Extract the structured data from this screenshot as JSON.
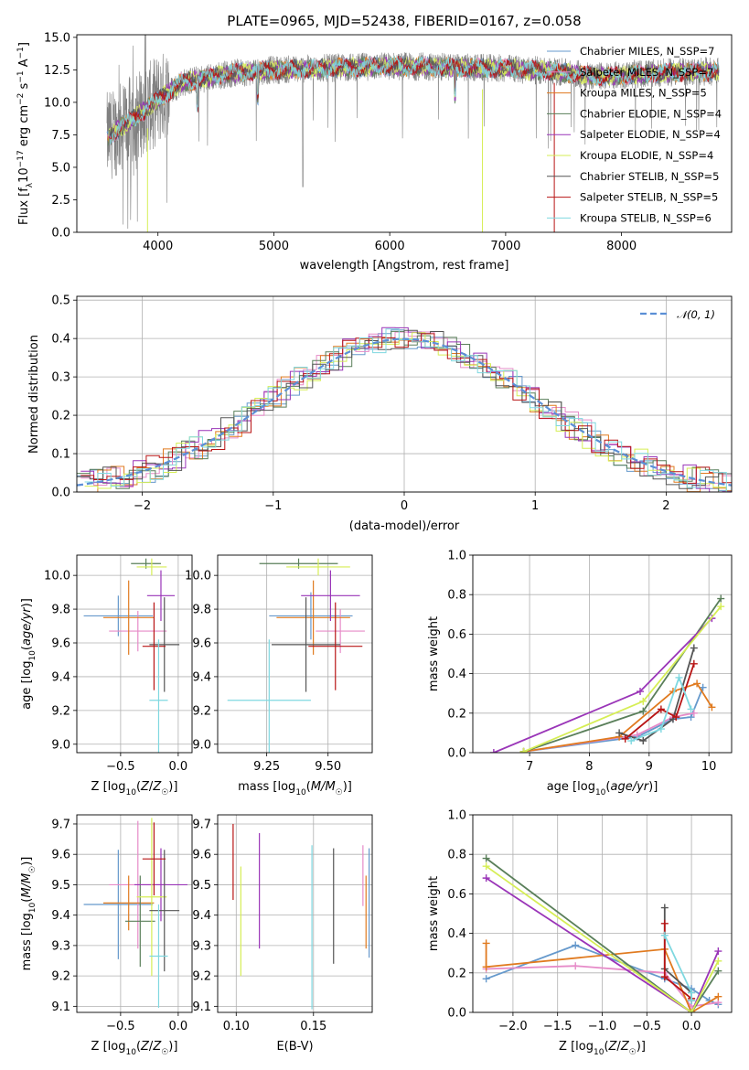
{
  "chart_data": [
    {
      "type": "line",
      "title": "PLATE=0965, MJD=52438, FIBERID=0167, z=0.058",
      "xlabel": "wavelength [Angstrom, rest frame]",
      "ylabel": "Flux [f_λ 10^-17 erg cm^-2 s^-1 A^-1]",
      "xlim": [
        3300,
        8950
      ],
      "ylim": [
        0,
        15.2
      ],
      "xticks": [
        4000,
        5000,
        6000,
        7000,
        8000
      ],
      "yticks": [
        0.0,
        2.5,
        5.0,
        7.5,
        10.0,
        12.5,
        15.0
      ],
      "xtick_labels": [
        "4000",
        "5000",
        "6000",
        "7000",
        "8000"
      ],
      "ytick_labels": [
        "0.0",
        "2.5",
        "5.0",
        "7.5",
        "10.0",
        "12.5",
        "15.0"
      ],
      "grid": false,
      "legend_position": "right",
      "observed": {
        "name": "",
        "color": "#808080",
        "x_range": [
          3560,
          8840
        ],
        "continuum": [
          [
            3560,
            7.3
          ],
          [
            3900,
            9.5
          ],
          [
            4200,
            11.5
          ],
          [
            4600,
            12.2
          ],
          [
            5000,
            12.5
          ],
          [
            6000,
            12.8
          ],
          [
            7000,
            12.6
          ],
          [
            7400,
            12.4
          ],
          [
            7800,
            12.0
          ],
          [
            8400,
            12.3
          ],
          [
            8840,
            12.4
          ]
        ]
      },
      "series": [
        {
          "name": "Chabrier MILES, N_SSP=7",
          "color": "#6699cc"
        },
        {
          "name": "Salpeter MILES, N_SSP=7",
          "color": "#e68bc8"
        },
        {
          "name": "Kroupa MILES, N_SSP=5",
          "color": "#e07a1f"
        },
        {
          "name": "Chabrier ELODIE, N_SSP=4",
          "color": "#5a7f5a"
        },
        {
          "name": "Salpeter ELODIE, N_SSP=4",
          "color": "#9a35b8"
        },
        {
          "name": "Kroupa ELODIE, N_SSP=4",
          "color": "#d6ee55"
        },
        {
          "name": "Chabrier STELIB, N_SSP=5",
          "color": "#555555"
        },
        {
          "name": "Salpeter STELIB, N_SSP=5",
          "color": "#b81414"
        },
        {
          "name": "Kroupa STELIB, N_SSP=6",
          "color": "#7fd8e0"
        }
      ]
    },
    {
      "type": "line",
      "xlabel": "(data-model)/error",
      "ylabel": "Normed distribution",
      "xlim": [
        -2.5,
        2.5
      ],
      "ylim": [
        0,
        0.51
      ],
      "xticks": [
        -2,
        -1,
        0,
        1,
        2
      ],
      "yticks": [
        0.0,
        0.1,
        0.2,
        0.3,
        0.4,
        0.5
      ],
      "xtick_labels": [
        "−2",
        "−1",
        "0",
        "1",
        "2"
      ],
      "ytick_labels": [
        "0.0",
        "0.1",
        "0.2",
        "0.3",
        "0.4",
        "0.5"
      ],
      "grid": true,
      "legend_position": "top-right",
      "reference_curve": {
        "name": "𝒩(0, 1)",
        "color": "#5b8fd6",
        "mean": 0,
        "sigma": 1
      },
      "histogram_bin_width": 0.1,
      "histogram_series_count": 9
    },
    {
      "type": "scatter",
      "xlabel": "Z [log10(Z/Z☉)]",
      "ylabel": "age [log10(age/yr)]",
      "xlim": [
        -0.88,
        0.12
      ],
      "ylim": [
        8.95,
        10.12
      ],
      "xticks": [
        -0.5,
        0.0
      ],
      "yticks": [
        9.0,
        9.2,
        9.4,
        9.6,
        9.8,
        10.0
      ],
      "xtick_labels": [
        "−0.5",
        "0.0"
      ],
      "ytick_labels": [
        "9.0",
        "9.2",
        "9.4",
        "9.6",
        "9.8",
        "10.0"
      ],
      "grid": true,
      "points": [
        {
          "color": "#6699cc",
          "x": -0.52,
          "xerr": 0.3,
          "y": 9.76,
          "yerr": 0.12
        },
        {
          "color": "#e68bc8",
          "x": -0.35,
          "xerr": 0.25,
          "y": 9.67,
          "yerr": 0.12
        },
        {
          "color": "#e07a1f",
          "x": -0.43,
          "xerr": 0.22,
          "y": 9.75,
          "yerr": 0.22
        },
        {
          "color": "#5a7f5a",
          "x": -0.28,
          "xerr": 0.13,
          "y": 10.07,
          "yerr": 0.03
        },
        {
          "color": "#9a35b8",
          "x": -0.15,
          "xerr": 0.12,
          "y": 9.88,
          "yerr": 0.15
        },
        {
          "color": "#d6ee55",
          "x": -0.23,
          "xerr": 0.13,
          "y": 10.05,
          "yerr": 0.05
        },
        {
          "color": "#555555",
          "x": -0.12,
          "xerr": 0.13,
          "y": 9.59,
          "yerr": 0.28
        },
        {
          "color": "#b81414",
          "x": -0.21,
          "xerr": 0.1,
          "y": 9.58,
          "yerr": 0.26
        },
        {
          "color": "#7fd8e0",
          "x": -0.17,
          "xerr": 0.08,
          "y": 9.26,
          "yerr": 0.36
        }
      ]
    },
    {
      "type": "scatter",
      "xlabel": "mass [log10(M/M☉)]",
      "ylabel": "",
      "xlim": [
        9.05,
        9.68
      ],
      "ylim": [
        8.95,
        10.12
      ],
      "xticks": [
        9.25,
        9.5
      ],
      "yticks": [
        9.0,
        9.2,
        9.4,
        9.6,
        9.8,
        10.0
      ],
      "xtick_labels": [
        "9.25",
        "9.50"
      ],
      "ytick_labels": [
        "9.0",
        "9.2",
        "9.4",
        "9.6",
        "9.8",
        "10.0"
      ],
      "grid": true,
      "points": [
        {
          "color": "#6699cc",
          "x": 9.43,
          "xerr": 0.17,
          "y": 9.76,
          "yerr": 0.14
        },
        {
          "color": "#e68bc8",
          "x": 9.55,
          "xerr": 0.1,
          "y": 9.67,
          "yerr": 0.13
        },
        {
          "color": "#e07a1f",
          "x": 9.44,
          "xerr": 0.15,
          "y": 9.75,
          "yerr": 0.22
        },
        {
          "color": "#5a7f5a",
          "x": 9.38,
          "xerr": 0.16,
          "y": 10.07,
          "yerr": 0.03
        },
        {
          "color": "#9a35b8",
          "x": 9.51,
          "xerr": 0.12,
          "y": 9.88,
          "yerr": 0.15
        },
        {
          "color": "#d6ee55",
          "x": 9.46,
          "xerr": 0.13,
          "y": 10.05,
          "yerr": 0.05
        },
        {
          "color": "#555555",
          "x": 9.41,
          "xerr": 0.14,
          "y": 9.59,
          "yerr": 0.28
        },
        {
          "color": "#b81414",
          "x": 9.53,
          "xerr": 0.11,
          "y": 9.58,
          "yerr": 0.26
        },
        {
          "color": "#7fd8e0",
          "x": 9.26,
          "xerr": 0.17,
          "y": 9.26,
          "yerr": 0.36
        }
      ]
    },
    {
      "type": "line",
      "xlabel": "age [log10(age/yr)]",
      "ylabel": "mass weight",
      "xlim": [
        6.05,
        10.38
      ],
      "ylim": [
        0,
        1.0
      ],
      "xticks": [
        7,
        8,
        9,
        10
      ],
      "yticks": [
        0.0,
        0.2,
        0.4,
        0.6,
        0.8,
        1.0
      ],
      "xtick_labels": [
        "7",
        "8",
        "9",
        "10"
      ],
      "ytick_labels": [
        "0.0",
        "0.2",
        "0.4",
        "0.6",
        "0.8",
        "1.0"
      ],
      "grid": true,
      "series": [
        {
          "color": "#6699cc",
          "x": [
            6.9,
            8.8,
            9.4,
            9.7,
            9.9
          ],
          "y": [
            0.005,
            0.08,
            0.17,
            0.18,
            0.33
          ]
        },
        {
          "color": "#e68bc8",
          "x": [
            6.9,
            8.8,
            9.4,
            9.75
          ],
          "y": [
            0.005,
            0.09,
            0.18,
            0.2
          ]
        },
        {
          "color": "#e07a1f",
          "x": [
            6.9,
            8.5,
            9.4,
            9.8,
            10.05
          ],
          "y": [
            0.005,
            0.08,
            0.31,
            0.35,
            0.23
          ]
        },
        {
          "color": "#5a7f5a",
          "x": [
            6.9,
            8.9,
            10.2
          ],
          "y": [
            0.005,
            0.21,
            0.78
          ]
        },
        {
          "color": "#9a35b8",
          "x": [
            6.4,
            8.85,
            10.05
          ],
          "y": [
            0.0,
            0.31,
            0.68
          ]
        },
        {
          "color": "#d6ee55",
          "x": [
            6.9,
            8.9,
            10.2
          ],
          "y": [
            0.005,
            0.26,
            0.74
          ]
        },
        {
          "color": "#555555",
          "x": [
            8.5,
            8.9,
            9.4,
            9.75
          ],
          "y": [
            0.1,
            0.06,
            0.17,
            0.53
          ]
        },
        {
          "color": "#b81414",
          "x": [
            8.6,
            9.2,
            9.45,
            9.75
          ],
          "y": [
            0.07,
            0.22,
            0.18,
            0.45
          ]
        },
        {
          "color": "#7fd8e0",
          "x": [
            8.7,
            9.2,
            9.5,
            9.7
          ],
          "y": [
            0.06,
            0.12,
            0.38,
            0.22
          ]
        }
      ]
    },
    {
      "type": "scatter",
      "xlabel": "Z [log10(Z/Z☉)]",
      "ylabel": "mass [log10(M/M☉)]",
      "xlim": [
        -0.88,
        0.12
      ],
      "ylim": [
        9.08,
        9.73
      ],
      "xticks": [
        -0.5,
        0.0
      ],
      "yticks": [
        9.1,
        9.2,
        9.3,
        9.4,
        9.5,
        9.6,
        9.7
      ],
      "xtick_labels": [
        "−0.5",
        "0.0"
      ],
      "ytick_labels": [
        "9.1",
        "9.2",
        "9.3",
        "9.4",
        "9.5",
        "9.6",
        "9.7"
      ],
      "grid": true,
      "points": [
        {
          "color": "#6699cc",
          "x": -0.52,
          "xerr": 0.3,
          "y": 9.435,
          "yerr": 0.18
        },
        {
          "color": "#e68bc8",
          "x": -0.35,
          "xerr": 0.25,
          "y": 9.5,
          "yerr": 0.21
        },
        {
          "color": "#e07a1f",
          "x": -0.43,
          "xerr": 0.22,
          "y": 9.44,
          "yerr": 0.09
        },
        {
          "color": "#5a7f5a",
          "x": -0.33,
          "xerr": 0.13,
          "y": 9.38,
          "yerr": 0.15
        },
        {
          "color": "#9a35b8",
          "x": -0.15,
          "xerr": 0.23,
          "y": 9.5,
          "yerr": 0.12
        },
        {
          "color": "#d6ee55",
          "x": -0.23,
          "xerr": 0.13,
          "y": 9.46,
          "yerr": 0.26
        },
        {
          "color": "#555555",
          "x": -0.12,
          "xerr": 0.13,
          "y": 9.415,
          "yerr": 0.2
        },
        {
          "color": "#b81414",
          "x": -0.21,
          "xerr": 0.1,
          "y": 9.585,
          "yerr": 0.12
        },
        {
          "color": "#7fd8e0",
          "x": -0.17,
          "xerr": 0.08,
          "y": 9.265,
          "yerr": 0.17
        }
      ]
    },
    {
      "type": "scatter",
      "xlabel": "E(B-V)",
      "ylabel": "",
      "xlim": [
        0.088,
        0.188
      ],
      "ylim": [
        9.08,
        9.73
      ],
      "xticks": [
        0.1,
        0.15
      ],
      "yticks": [
        9.1,
        9.2,
        9.3,
        9.4,
        9.5,
        9.6,
        9.7
      ],
      "xtick_labels": [
        "0.10",
        "0.15"
      ],
      "ytick_labels": [
        "9.1",
        "9.2",
        "9.3",
        "9.4",
        "9.5",
        "9.6",
        "9.7"
      ],
      "grid": true,
      "points": [
        {
          "color": "#6699cc",
          "x": 0.186,
          "y": 9.44,
          "yerr": 0.18
        },
        {
          "color": "#e68bc8",
          "x": 0.182,
          "y": 9.53,
          "yerr": 0.1
        },
        {
          "color": "#e07a1f",
          "x": 0.184,
          "y": 9.41,
          "yerr": 0.12
        },
        {
          "color": "#9a35b8",
          "x": 0.115,
          "y": 9.48,
          "yerr": 0.19
        },
        {
          "color": "#d6ee55",
          "x": 0.103,
          "y": 9.38,
          "yerr": 0.18
        },
        {
          "color": "#555555",
          "x": 0.163,
          "y": 9.43,
          "yerr": 0.19
        },
        {
          "color": "#b81414",
          "x": 0.098,
          "y": 9.575,
          "yerr": 0.125
        },
        {
          "color": "#7fd8e0",
          "x": 0.149,
          "y": 9.36,
          "yerr": 0.27
        }
      ]
    },
    {
      "type": "line",
      "xlabel": "Z [log10(Z/Z☉)]",
      "ylabel": "mass weight",
      "xlim": [
        -2.45,
        0.45
      ],
      "ylim": [
        0,
        1.0
      ],
      "xticks": [
        -2.0,
        -1.5,
        -1.0,
        -0.5,
        0.0
      ],
      "yticks": [
        0.0,
        0.2,
        0.4,
        0.6,
        0.8,
        1.0
      ],
      "xtick_labels": [
        "−2.0",
        "−1.5",
        "−1.0",
        "−0.5",
        "0.0"
      ],
      "ytick_labels": [
        "0.0",
        "0.2",
        "0.4",
        "0.6",
        "0.8",
        "1.0"
      ],
      "grid": true,
      "series": [
        {
          "color": "#6699cc",
          "x": [
            -2.3,
            -1.3,
            -0.3,
            0.0,
            0.2,
            0.3
          ],
          "y": [
            0.17,
            0.34,
            0.17,
            0.12,
            0.06,
            0.04
          ]
        },
        {
          "color": "#e68bc8",
          "x": [
            -2.3,
            -1.3,
            -0.3,
            0.0,
            0.3
          ],
          "y": [
            0.22,
            0.235,
            0.2,
            0.03,
            0.05
          ]
        },
        {
          "color": "#e07a1f",
          "x": [
            -2.3,
            -2.3,
            -0.3,
            0.0,
            0.3
          ],
          "y": [
            0.35,
            0.23,
            0.32,
            0.0,
            0.08
          ]
        },
        {
          "color": "#5a7f5a",
          "x": [
            -2.3,
            0.0,
            0.3
          ],
          "y": [
            0.78,
            0.0,
            0.21
          ]
        },
        {
          "color": "#9a35b8",
          "x": [
            -2.3,
            0.0,
            0.3
          ],
          "y": [
            0.68,
            0.0,
            0.31
          ]
        },
        {
          "color": "#d6ee55",
          "x": [
            -2.3,
            0.0,
            0.3
          ],
          "y": [
            0.74,
            0.0,
            0.26
          ]
        },
        {
          "color": "#555555",
          "x": [
            -0.3,
            -0.3,
            0.0,
            0.0
          ],
          "y": [
            0.53,
            0.22,
            0.1,
            0.06
          ]
        },
        {
          "color": "#b81414",
          "x": [
            -0.3,
            -0.3,
            0.0
          ],
          "y": [
            0.45,
            0.18,
            0.07
          ]
        },
        {
          "color": "#7fd8e0",
          "x": [
            -0.3,
            0.0,
            0.0
          ],
          "y": [
            0.39,
            0.1,
            0.06
          ]
        }
      ]
    }
  ]
}
